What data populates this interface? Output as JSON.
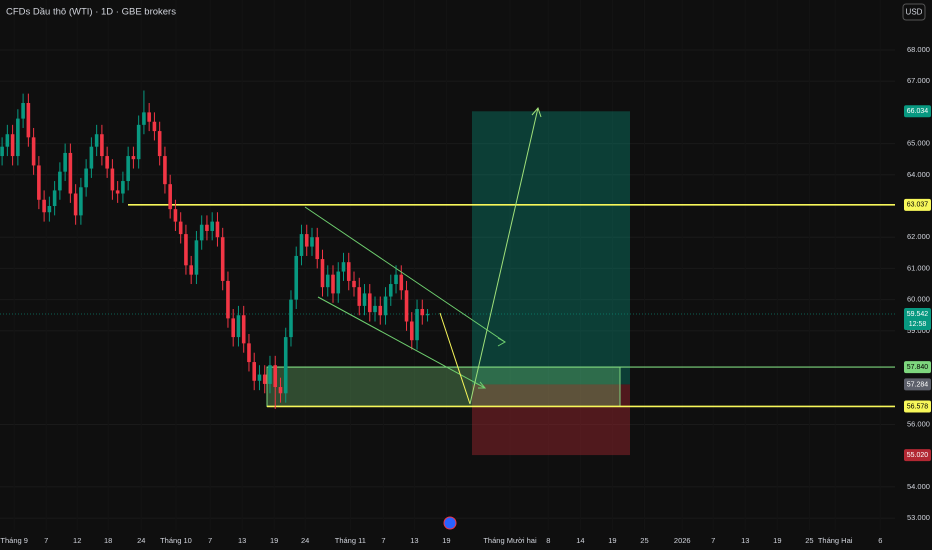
{
  "chart_data": {
    "type": "candlestick",
    "title": "CFDs Dầu thô (WTI) · 1D · GBE brokers",
    "currency": "USD",
    "up_color": "#089981",
    "down_color": "#f23645",
    "open": [
      64.6,
      64.9,
      65.3,
      64.6,
      65.8,
      66.3,
      65.2,
      64.3,
      63.2,
      62.8,
      63.0,
      63.5,
      64.1,
      64.7,
      63.4,
      62.7,
      63.6,
      64.2,
      64.9,
      65.3,
      64.6,
      64.2,
      63.5,
      63.4,
      63.8,
      64.6,
      64.5,
      65.6,
      66.0,
      65.7,
      65.4,
      64.6,
      63.7,
      62.9,
      62.5,
      62.1,
      61.1,
      60.8,
      61.9,
      62.4,
      62.2,
      62.5,
      62.0,
      60.6,
      59.4,
      58.8,
      59.5,
      58.6,
      58.0,
      57.4,
      57.6,
      57.3,
      57.9,
      57.2,
      57.0,
      58.8,
      60.0,
      61.4,
      62.1,
      61.7,
      62.0,
      61.3,
      60.4,
      60.8,
      60.2,
      60.9,
      61.2,
      60.6,
      60.4,
      59.8,
      60.2,
      59.6,
      59.8,
      59.5,
      60.1,
      60.5,
      60.8,
      60.3,
      59.3,
      58.7,
      59.7,
      59.5
    ],
    "high": [
      65.2,
      65.6,
      65.6,
      66.1,
      66.6,
      66.6,
      65.5,
      64.6,
      63.5,
      63.3,
      63.8,
      64.4,
      65.0,
      65.0,
      63.7,
      63.9,
      64.5,
      65.2,
      65.6,
      65.6,
      64.9,
      64.5,
      63.8,
      64.1,
      64.9,
      64.9,
      65.9,
      66.7,
      66.3,
      66.0,
      65.7,
      64.9,
      64.0,
      63.2,
      62.8,
      62.4,
      61.4,
      62.2,
      62.7,
      62.7,
      62.8,
      62.8,
      62.3,
      60.9,
      59.7,
      59.8,
      59.8,
      58.9,
      58.3,
      57.9,
      57.9,
      58.2,
      58.2,
      57.5,
      59.1,
      60.3,
      61.7,
      62.4,
      62.4,
      62.3,
      62.3,
      61.6,
      61.1,
      61.1,
      61.2,
      61.5,
      61.5,
      60.9,
      60.7,
      60.5,
      60.5,
      60.1,
      60.1,
      60.4,
      60.8,
      61.1,
      61.1,
      60.6,
      59.6,
      60.0,
      60.0,
      59.7
    ],
    "low": [
      64.3,
      64.6,
      64.3,
      64.3,
      65.5,
      64.9,
      64.0,
      62.9,
      62.5,
      62.5,
      62.7,
      63.2,
      63.8,
      63.1,
      62.4,
      62.4,
      63.3,
      63.9,
      64.6,
      64.3,
      63.9,
      63.2,
      63.1,
      63.1,
      63.5,
      64.2,
      64.2,
      65.3,
      65.4,
      65.1,
      64.3,
      63.4,
      62.6,
      62.2,
      61.8,
      60.8,
      60.5,
      60.5,
      61.6,
      61.9,
      61.9,
      61.7,
      60.3,
      59.1,
      58.5,
      58.5,
      58.3,
      57.7,
      57.1,
      57.1,
      57.0,
      57.0,
      56.5,
      56.7,
      56.7,
      58.5,
      59.7,
      61.1,
      61.4,
      61.4,
      61.0,
      60.1,
      60.1,
      59.9,
      59.9,
      60.6,
      60.3,
      60.1,
      59.5,
      59.5,
      59.3,
      59.3,
      59.2,
      59.2,
      59.8,
      60.2,
      60.0,
      59.0,
      58.4,
      58.4,
      59.2,
      59.3
    ],
    "close": [
      64.9,
      65.3,
      64.6,
      65.8,
      66.3,
      65.2,
      64.3,
      63.2,
      62.8,
      63.0,
      63.5,
      64.1,
      64.7,
      63.4,
      62.7,
      63.6,
      64.2,
      64.9,
      65.3,
      64.6,
      64.2,
      63.5,
      63.4,
      63.8,
      64.6,
      64.5,
      65.6,
      66.0,
      65.7,
      65.4,
      64.6,
      63.7,
      62.9,
      62.5,
      62.1,
      61.1,
      60.8,
      61.9,
      62.4,
      62.2,
      62.5,
      62.0,
      60.6,
      59.4,
      58.8,
      59.5,
      58.6,
      58.0,
      57.4,
      57.6,
      57.3,
      57.9,
      57.2,
      57.0,
      58.8,
      60.0,
      61.4,
      62.1,
      61.7,
      62.0,
      61.3,
      60.4,
      60.8,
      60.2,
      60.9,
      61.2,
      60.6,
      60.4,
      59.8,
      60.2,
      59.6,
      59.8,
      59.5,
      60.1,
      60.5,
      60.8,
      60.3,
      59.3,
      58.7,
      59.7,
      59.5,
      59.54
    ],
    "xlim": [
      -0.4,
      170
    ],
    "xticks": [
      {
        "value": 2.3,
        "label": "Tháng 9"
      },
      {
        "value": 8.4,
        "label": "7"
      },
      {
        "value": 14.3,
        "label": "12"
      },
      {
        "value": 20.2,
        "label": "18"
      },
      {
        "value": 26.5,
        "label": "24"
      },
      {
        "value": 33.1,
        "label": "Tháng 10"
      },
      {
        "value": 39.6,
        "label": "7"
      },
      {
        "value": 45.7,
        "label": "13"
      },
      {
        "value": 51.8,
        "label": "19"
      },
      {
        "value": 57.7,
        "label": "24"
      },
      {
        "value": 66.3,
        "label": "Tháng 11"
      },
      {
        "value": 72.6,
        "label": "7"
      },
      {
        "value": 78.5,
        "label": "13"
      },
      {
        "value": 84.6,
        "label": "19"
      },
      {
        "value": 96.7,
        "label": "Tháng Mười hai"
      },
      {
        "value": 104,
        "label": "8"
      },
      {
        "value": 110.1,
        "label": "14"
      },
      {
        "value": 116.2,
        "label": "19"
      },
      {
        "value": 122.3,
        "label": "25"
      },
      {
        "value": 129.5,
        "label": "2026"
      },
      {
        "value": 135.4,
        "label": "7"
      },
      {
        "value": 141.5,
        "label": "13"
      },
      {
        "value": 147.6,
        "label": "19"
      },
      {
        "value": 153.7,
        "label": "25"
      },
      {
        "value": 158.6,
        "label": "Tháng Hai"
      },
      {
        "value": 167.2,
        "label": "6"
      }
    ],
    "ylim": [
      52.62,
      69.6
    ],
    "yticks": [
      {
        "value": 68,
        "label": "68.000"
      },
      {
        "value": 67,
        "label": "67.000"
      },
      {
        "value": 65,
        "label": "65.000"
      },
      {
        "value": 64,
        "label": "64.000"
      },
      {
        "value": 62,
        "label": "62.000"
      },
      {
        "value": 61,
        "label": "61.000"
      },
      {
        "value": 60,
        "label": "60.000"
      },
      {
        "value": 59,
        "label": "59.000"
      },
      {
        "value": 56,
        "label": "56.000"
      },
      {
        "value": 54,
        "label": "54.000"
      },
      {
        "value": 53,
        "label": "53.000"
      }
    ],
    "levels": [
      {
        "value": 63.037,
        "label": "63.037",
        "color": "#f7f75a"
      },
      {
        "value": 57.84,
        "label": "57.840",
        "color": "#7ed67e"
      },
      {
        "value": 56.578,
        "label": "56.578",
        "color": "#f7f75a"
      }
    ],
    "last_price": {
      "value": 59.542,
      "label": "59.542",
      "countdown": "12:58",
      "color": "#089981"
    },
    "position": {
      "target": {
        "value": 66.034,
        "label": "66.034",
        "color": "#089981"
      },
      "entry": {
        "value": 57.284,
        "label": "57.284",
        "color": "#5d606b"
      },
      "stop": {
        "value": 55.02,
        "label": "55.020",
        "color": "#b22833"
      }
    }
  }
}
